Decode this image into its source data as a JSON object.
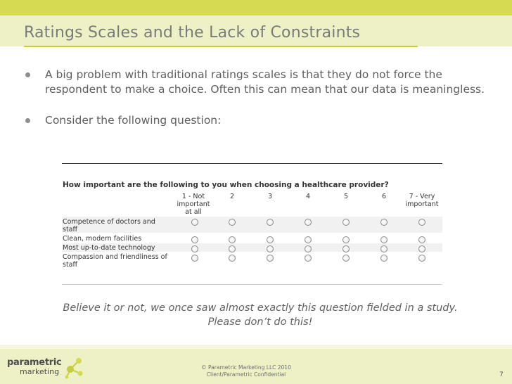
{
  "slide": {
    "title": "Ratings Scales and the Lack of Constraints",
    "bullets": [
      "A big problem with traditional ratings scales is that they do not force the respondent to make a choice. Often this can mean that our data is meaningless.",
      "Consider the following question:"
    ],
    "caption_line1": "Believe it or not, we once saw almost exactly this question fielded in a study.",
    "caption_line2": "Please don’t do this!",
    "page_number": "7"
  },
  "survey": {
    "question": "How important are the following to you when choosing a healthcare provider?",
    "scale": [
      "1 - Not important at all",
      "2",
      "3",
      "4",
      "5",
      "6",
      "7 - Very important"
    ],
    "items": [
      "Competence of doctors and staff",
      "Clean, modern facilities",
      "Most up-to-date technology",
      "Compassion and friendliness of staff"
    ]
  },
  "footer": {
    "logo_word1": "parametric",
    "logo_word2": "marketing",
    "copyright": "© Parametric Marketing LLC 2010",
    "confidential": "Client/Parametric Confidential"
  },
  "colors": {
    "accent_green": "#d5da52",
    "pale_green": "#eef0c6",
    "text_gray": "#5f5f5f"
  }
}
